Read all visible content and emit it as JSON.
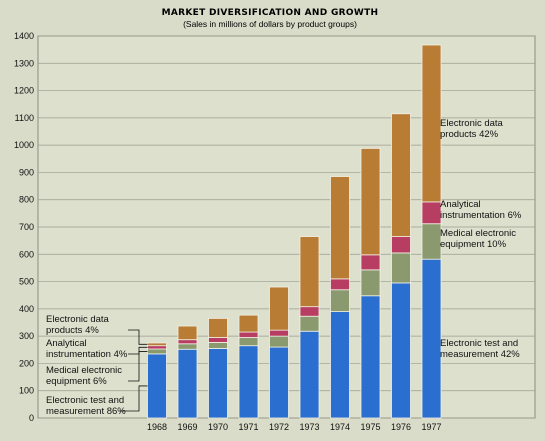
{
  "chart_data": {
    "type": "bar",
    "stacked": true,
    "title": "MARKET DIVERSIFICATION AND GROWTH",
    "subtitle": "(Sales in millions of dollars by product groups)",
    "categories": [
      "1968",
      "1969",
      "1970",
      "1971",
      "1972",
      "1973",
      "1974",
      "1975",
      "1976",
      "1977"
    ],
    "ylim": [
      0,
      1400
    ],
    "yticks": [
      0,
      100,
      200,
      300,
      400,
      500,
      600,
      700,
      800,
      900,
      1000,
      1100,
      1200,
      1300,
      1400
    ],
    "grid": true,
    "series": [
      {
        "key": "test",
        "color": "#2a6fd0",
        "values": [
          235,
          252,
          255,
          265,
          260,
          318,
          390,
          448,
          495,
          582
        ]
      },
      {
        "key": "medical",
        "color": "#8a9a6e",
        "values": [
          18,
          20,
          22,
          30,
          40,
          55,
          80,
          95,
          110,
          130
        ]
      },
      {
        "key": "analytical",
        "color": "#b83d62",
        "values": [
          12,
          15,
          18,
          20,
          22,
          35,
          40,
          55,
          60,
          80
        ]
      },
      {
        "key": "edp",
        "color": "#b87c34",
        "values": [
          10,
          50,
          70,
          62,
          158,
          257,
          375,
          390,
          450,
          575
        ]
      }
    ],
    "annotations_1968": [
      {
        "lines": [
          "Electronic data",
          "products  4%"
        ],
        "series": "edp"
      },
      {
        "lines": [
          "Analytical",
          "instrumentation    4%"
        ],
        "series": "analytical"
      },
      {
        "lines": [
          "Medical electronic",
          "equipment   6%"
        ],
        "series": "medical"
      },
      {
        "lines": [
          "Electronic test and",
          "measurement    86%"
        ],
        "series": "test"
      }
    ],
    "annotations_1977": [
      {
        "lines": [
          "Electronic data",
          "products   42%"
        ],
        "series": "edp"
      },
      {
        "lines": [
          "Analytical",
          "instrumentation       6%"
        ],
        "series": "analytical"
      },
      {
        "lines": [
          "Medical electronic",
          "equipment    10%"
        ],
        "series": "medical"
      },
      {
        "lines": [
          "Electronic test and",
          "measurement    42%"
        ],
        "series": "test"
      }
    ]
  }
}
